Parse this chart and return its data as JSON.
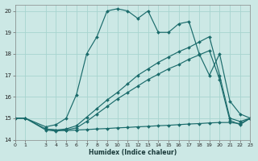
{
  "xlabel": "Humidex (Indice chaleur)",
  "bg_color": "#cce8e5",
  "grid_color": "#a8d4cf",
  "line_color": "#1a6b6b",
  "xlim": [
    0,
    23
  ],
  "ylim": [
    14,
    20.3
  ],
  "xticks": [
    0,
    1,
    3,
    4,
    5,
    6,
    7,
    8,
    9,
    10,
    11,
    12,
    13,
    14,
    15,
    16,
    17,
    18,
    19,
    20,
    21,
    22,
    23
  ],
  "yticks": [
    14,
    15,
    16,
    17,
    18,
    19,
    20
  ],
  "curve1_x": [
    0,
    1,
    3,
    4,
    5,
    6,
    7,
    8,
    9,
    10,
    11,
    12,
    13,
    14,
    15,
    16,
    17,
    18,
    19,
    20,
    21,
    22,
    23
  ],
  "curve1_y": [
    15.0,
    15.0,
    14.6,
    14.7,
    15.0,
    16.1,
    18.0,
    18.8,
    20.0,
    20.1,
    20.0,
    19.65,
    20.0,
    19.0,
    19.0,
    19.4,
    19.5,
    18.0,
    17.0,
    18.0,
    15.8,
    15.2,
    15.0
  ],
  "curve2_x": [
    0,
    1,
    3,
    4,
    5,
    6,
    7,
    8,
    9,
    10,
    11,
    12,
    13,
    14,
    15,
    16,
    17,
    18,
    19,
    20,
    21,
    22,
    23
  ],
  "curve2_y": [
    15.0,
    15.0,
    14.5,
    14.45,
    14.5,
    14.65,
    15.05,
    15.45,
    15.85,
    16.2,
    16.6,
    17.0,
    17.3,
    17.6,
    17.85,
    18.1,
    18.3,
    18.55,
    18.8,
    17.0,
    15.0,
    14.85,
    15.0
  ],
  "curve3_x": [
    0,
    1,
    3,
    4,
    5,
    6,
    7,
    8,
    9,
    10,
    11,
    12,
    13,
    14,
    15,
    16,
    17,
    18,
    19,
    20,
    21,
    22,
    23
  ],
  "curve3_y": [
    15.0,
    15.0,
    14.45,
    14.4,
    14.45,
    14.55,
    14.85,
    15.2,
    15.55,
    15.9,
    16.2,
    16.5,
    16.8,
    17.05,
    17.3,
    17.5,
    17.75,
    17.95,
    18.15,
    16.8,
    14.9,
    14.7,
    15.0
  ],
  "curve4_x": [
    3,
    4,
    5,
    6,
    7,
    8,
    9,
    10,
    11,
    12,
    13,
    14,
    15,
    16,
    17,
    18,
    19,
    20,
    21,
    22,
    23
  ],
  "curve4_y": [
    14.5,
    14.45,
    14.42,
    14.45,
    14.47,
    14.5,
    14.52,
    14.55,
    14.57,
    14.6,
    14.62,
    14.65,
    14.67,
    14.7,
    14.73,
    14.75,
    14.78,
    14.8,
    14.8,
    14.75,
    15.0
  ],
  "marker": "D",
  "markersize": 2.0,
  "linewidth": 0.85
}
